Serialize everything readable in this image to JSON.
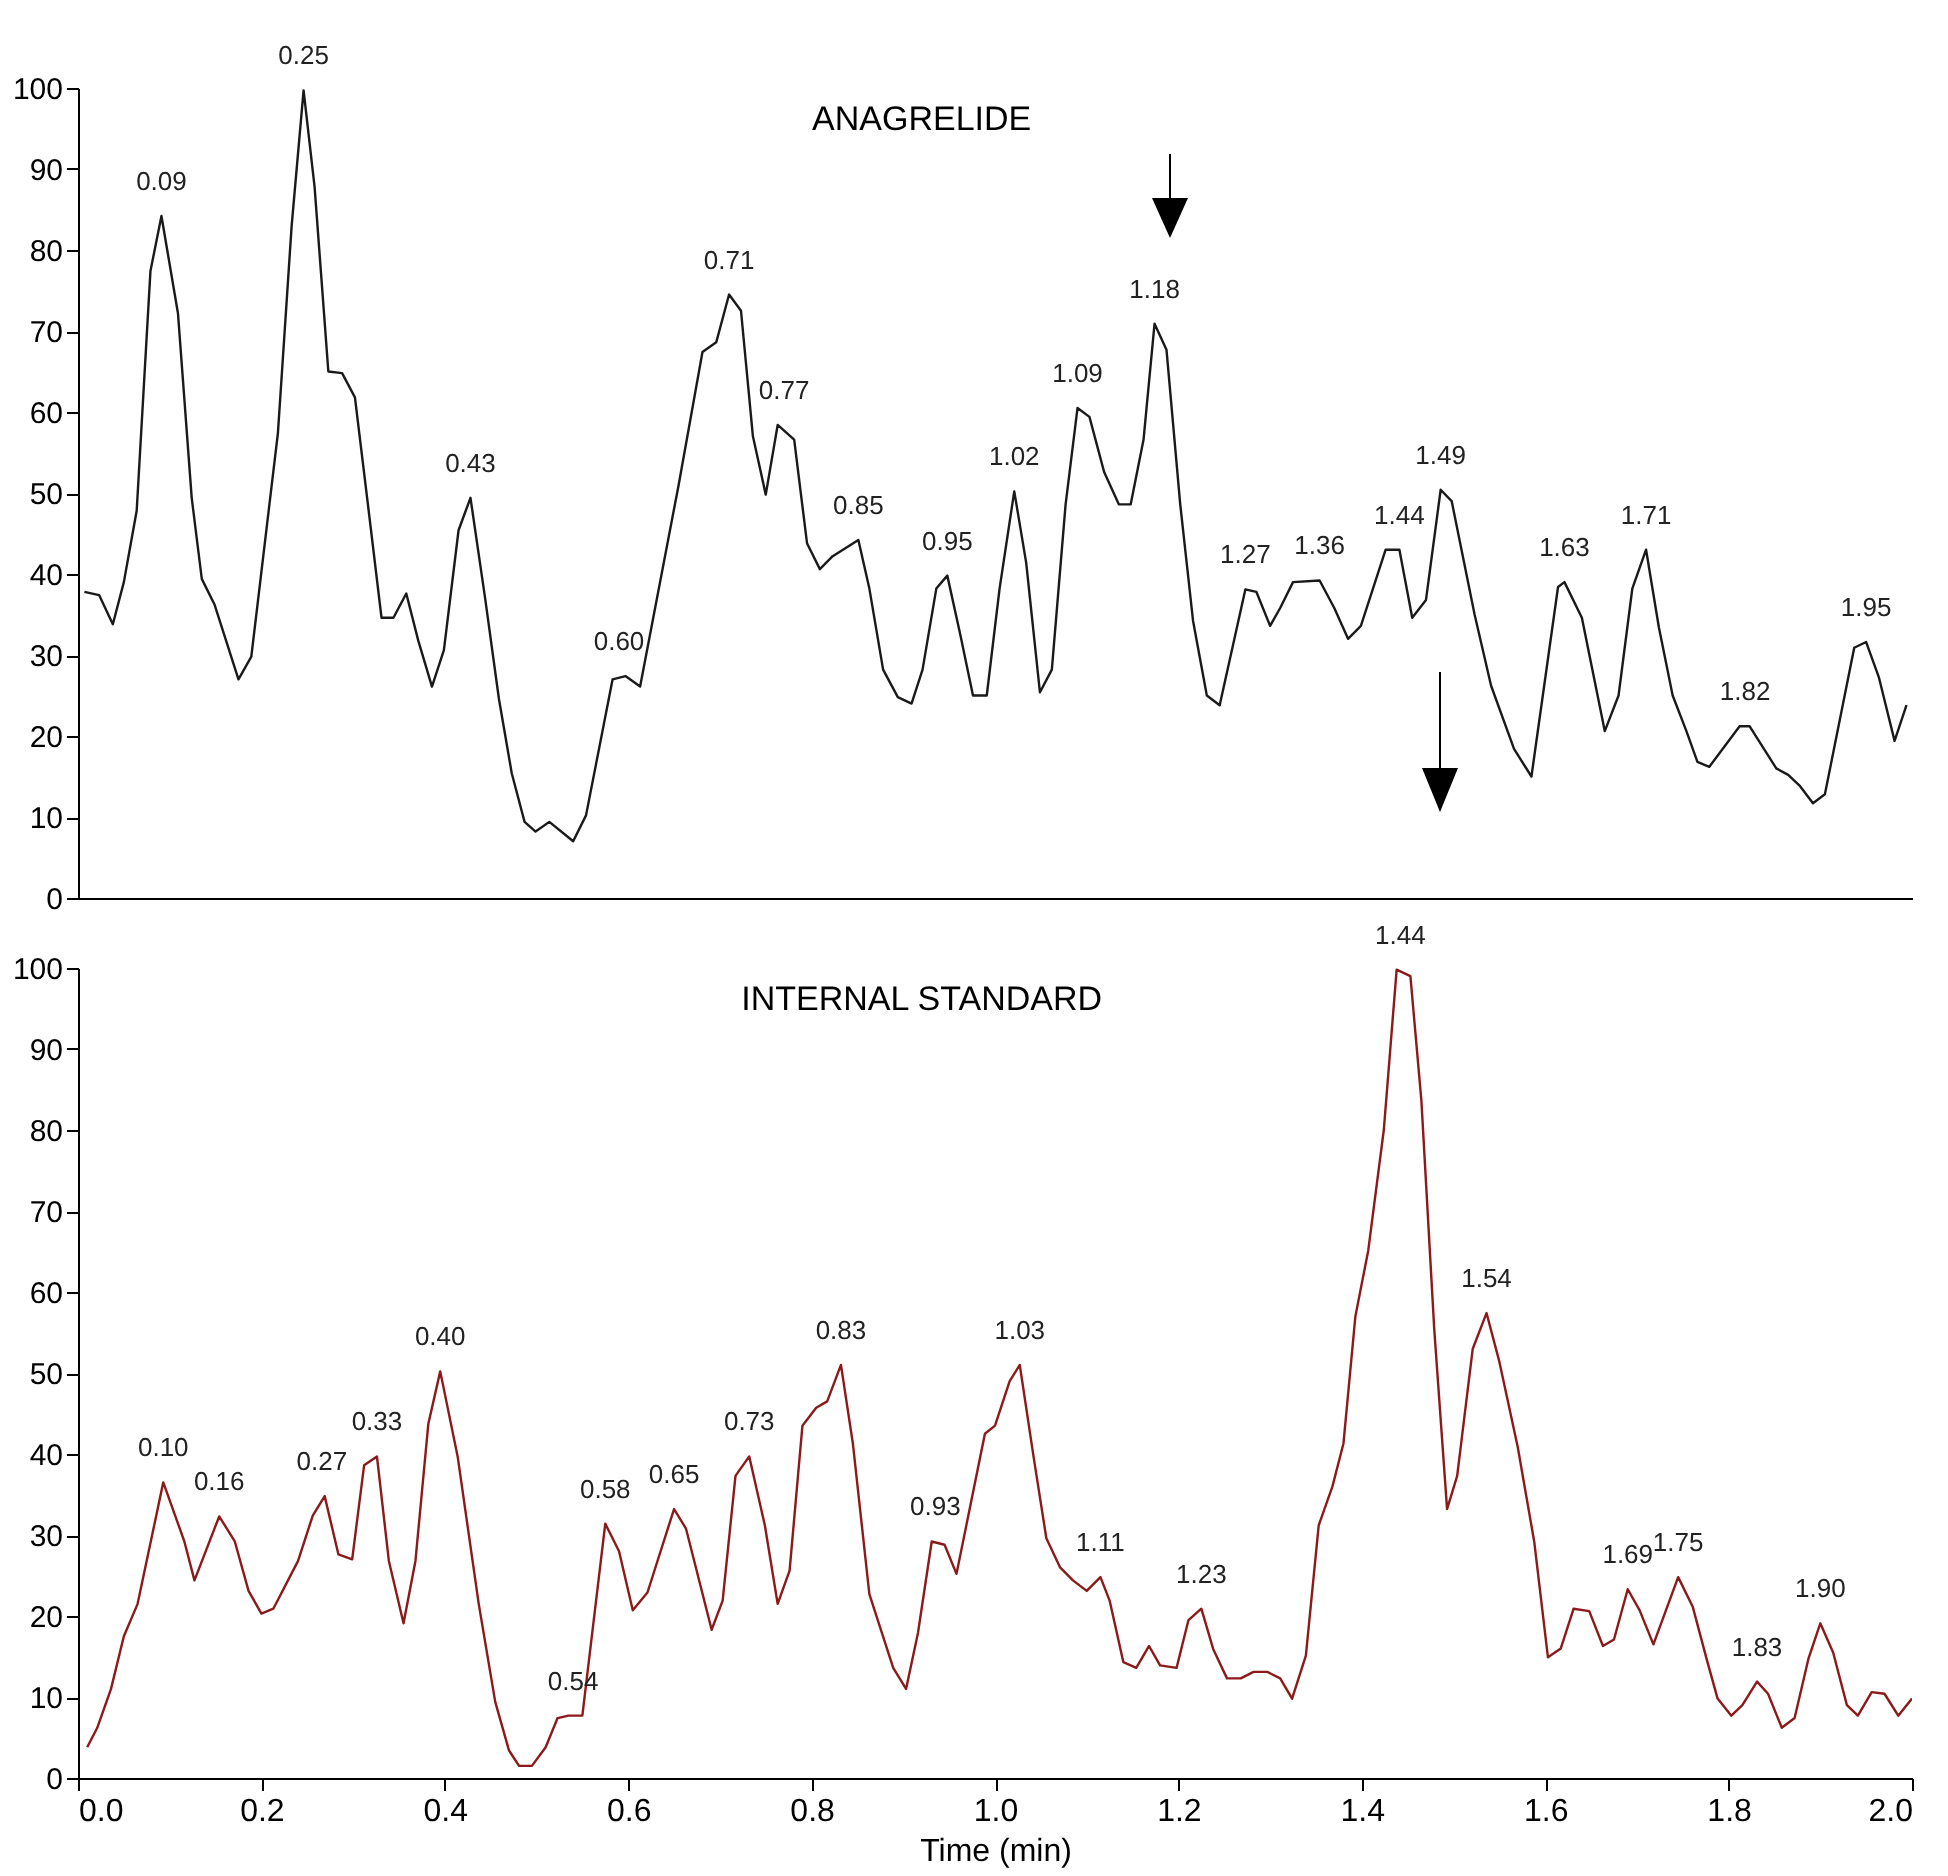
{
  "chart_data": [
    {
      "type": "line",
      "title": "ANAGRELIDE",
      "tick_labels": "y",
      "xlim": [
        0,
        2.0
      ],
      "ylim": [
        0,
        100
      ],
      "yticks": [
        0,
        10,
        20,
        30,
        40,
        50,
        60,
        70,
        80,
        90,
        100
      ],
      "grid": false,
      "series": [
        {
          "color": "#1a1a1a",
          "x": [
            0.007,
            0.023,
            0.038,
            0.05,
            0.064,
            0.079,
            0.091,
            0.109,
            0.124,
            0.135,
            0.149,
            0.175,
            0.189,
            0.218,
            0.233,
            0.246,
            0.258,
            0.273,
            0.288,
            0.302,
            0.317,
            0.331,
            0.344,
            0.358,
            0.371,
            0.386,
            0.399,
            0.415,
            0.428,
            0.444,
            0.459,
            0.473,
            0.487,
            0.499,
            0.514,
            0.54,
            0.554,
            0.583,
            0.597,
            0.613,
            0.655,
            0.681,
            0.696,
            0.71,
            0.723,
            0.736,
            0.75,
            0.763,
            0.781,
            0.795,
            0.809,
            0.823,
            0.851,
            0.863,
            0.878,
            0.894,
            0.909,
            0.921,
            0.936,
            0.948,
            0.962,
            0.976,
            0.991,
            1.005,
            1.021,
            1.034,
            1.049,
            1.062,
            1.077,
            1.09,
            1.103,
            1.119,
            1.135,
            1.148,
            1.162,
            1.174,
            1.187,
            1.202,
            1.216,
            1.231,
            1.245,
            1.273,
            1.285,
            1.3,
            1.311,
            1.325,
            1.354,
            1.37,
            1.385,
            1.399,
            1.426,
            1.441,
            1.455,
            1.47,
            1.486,
            1.498,
            1.523,
            1.541,
            1.566,
            1.585,
            1.614,
            1.621,
            1.64,
            1.665,
            1.68,
            1.695,
            1.71,
            1.724,
            1.739,
            1.754,
            1.766,
            1.779,
            1.812,
            1.823,
            1.852,
            1.865,
            1.878,
            1.892,
            1.905,
            1.937,
            1.95,
            1.964,
            1.981,
            1.994
          ],
          "values": [
            37.8,
            37.4,
            33.8,
            39.0,
            47.8,
            77.4,
            84.2,
            72.2,
            49.4,
            39.4,
            36.2,
            27.0,
            29.8,
            57.4,
            83.0,
            99.7,
            87.8,
            65.0,
            64.8,
            61.8,
            47.8,
            34.6,
            34.6,
            37.6,
            31.8,
            26.1,
            30.6,
            45.4,
            49.4,
            37.0,
            24.6,
            15.4,
            9.4,
            8.2,
            9.4,
            7.0,
            10.2,
            27.0,
            27.4,
            26.1,
            51.0,
            67.4,
            68.6,
            74.5,
            72.5,
            57.0,
            49.8,
            58.4,
            56.6,
            43.8,
            40.6,
            42.2,
            44.2,
            38.2,
            28.2,
            24.8,
            24.0,
            28.2,
            38.2,
            39.8,
            32.6,
            25.0,
            25.0,
            38.2,
            50.2,
            41.4,
            25.4,
            28.2,
            48.6,
            60.5,
            59.4,
            52.6,
            48.6,
            48.6,
            56.6,
            70.9,
            67.7,
            48.6,
            34.2,
            25.0,
            23.8,
            38.1,
            37.8,
            33.6,
            35.8,
            39.0,
            39.2,
            35.8,
            32.0,
            33.6,
            43.0,
            43.0,
            34.6,
            36.8,
            50.4,
            49.0,
            35.0,
            26.2,
            18.4,
            15.0,
            38.4,
            39.0,
            34.6,
            20.6,
            25.0,
            38.2,
            43.0,
            33.4,
            25.0,
            20.6,
            16.8,
            16.2,
            21.2,
            21.2,
            16.0,
            15.2,
            13.8,
            11.7,
            12.8,
            30.9,
            31.6,
            27.2,
            19.4,
            23.8
          ]
        }
      ],
      "annotations": [
        {
          "text": "0.09",
          "x": 0.091,
          "y": 84.2
        },
        {
          "text": "0.25",
          "x": 0.246,
          "y": 99.7
        },
        {
          "text": "0.43",
          "x": 0.428,
          "y": 49.4
        },
        {
          "text": "0.60",
          "x": 0.59,
          "y": 27.4
        },
        {
          "text": "0.71",
          "x": 0.71,
          "y": 74.5
        },
        {
          "text": "0.77",
          "x": 0.77,
          "y": 58.4
        },
        {
          "text": "0.85",
          "x": 0.851,
          "y": 44.2
        },
        {
          "text": "0.95",
          "x": 0.948,
          "y": 39.8
        },
        {
          "text": "1.02",
          "x": 1.021,
          "y": 50.2
        },
        {
          "text": "1.09",
          "x": 1.09,
          "y": 60.5
        },
        {
          "text": "1.18",
          "x": 1.174,
          "y": 70.9
        },
        {
          "text": "1.27",
          "x": 1.273,
          "y": 38.1
        },
        {
          "text": "1.36",
          "x": 1.354,
          "y": 39.2
        },
        {
          "text": "1.44",
          "x": 1.441,
          "y": 43.0
        },
        {
          "text": "1.49",
          "x": 1.486,
          "y": 50.4
        },
        {
          "text": "1.63",
          "x": 1.621,
          "y": 39.0
        },
        {
          "text": "1.71",
          "x": 1.71,
          "y": 43.0
        },
        {
          "text": "1.82",
          "x": 1.818,
          "y": 21.2
        },
        {
          "text": "1.95",
          "x": 1.95,
          "y": 31.6
        }
      ]
    },
    {
      "type": "line",
      "title": "INTERNAL STANDARD",
      "xlabel": "Time (min)",
      "xlim": [
        0,
        2.0
      ],
      "ylim": [
        0,
        100
      ],
      "yticks": [
        0,
        10,
        20,
        30,
        40,
        50,
        60,
        70,
        80,
        90,
        100
      ],
      "xticks": [
        {
          "value": 0,
          "label": "0.0"
        },
        0.2,
        0.4,
        0.6,
        0.8,
        {
          "value": 1,
          "label": "1.0"
        },
        1.2,
        1.4,
        1.6,
        1.8,
        {
          "value": 2,
          "label": "2.0"
        }
      ],
      "grid": false,
      "series": [
        {
          "color": "#8b1a1a",
          "x": [
            0.01,
            0.021,
            0.036,
            0.05,
            0.065,
            0.093,
            0.116,
            0.127,
            0.154,
            0.171,
            0.186,
            0.2,
            0.213,
            0.24,
            0.256,
            0.269,
            0.284,
            0.299,
            0.312,
            0.326,
            0.339,
            0.355,
            0.368,
            0.382,
            0.395,
            0.414,
            0.437,
            0.455,
            0.47,
            0.481,
            0.495,
            0.51,
            0.523,
            0.535,
            0.55,
            0.575,
            0.59,
            0.605,
            0.621,
            0.65,
            0.663,
            0.691,
            0.703,
            0.717,
            0.732,
            0.749,
            0.763,
            0.776,
            0.79,
            0.805,
            0.817,
            0.832,
            0.845,
            0.863,
            0.889,
            0.903,
            0.916,
            0.931,
            0.945,
            0.958,
            0.989,
            1.0,
            1.016,
            1.027,
            1.042,
            1.056,
            1.071,
            1.085,
            1.1,
            1.115,
            1.125,
            1.14,
            1.154,
            1.168,
            1.18,
            1.198,
            1.211,
            1.225,
            1.238,
            1.253,
            1.268,
            1.282,
            1.297,
            1.311,
            1.324,
            1.339,
            1.353,
            1.368,
            1.38,
            1.393,
            1.407,
            1.424,
            1.438,
            1.453,
            1.465,
            1.479,
            1.493,
            1.504,
            1.521,
            1.536,
            1.55,
            1.57,
            1.588,
            1.603,
            1.617,
            1.631,
            1.648,
            1.663,
            1.675,
            1.69,
            1.703,
            1.718,
            1.745,
            1.761,
            1.776,
            1.788,
            1.803,
            1.815,
            1.831,
            1.843,
            1.858,
            1.872,
            1.887,
            1.9,
            1.914,
            1.929,
            1.941,
            1.956,
            1.97,
            1.985,
            2.0
          ],
          "values": [
            3.8,
            6.2,
            11.0,
            17.5,
            21.5,
            36.5,
            29.2,
            24.4,
            32.3,
            29.2,
            23.1,
            20.3,
            20.9,
            26.8,
            32.4,
            34.8,
            27.6,
            27.0,
            38.6,
            39.7,
            26.8,
            19.1,
            26.8,
            43.7,
            50.2,
            39.7,
            21.5,
            9.4,
            3.4,
            1.5,
            1.5,
            3.8,
            7.4,
            7.7,
            7.7,
            31.4,
            28.0,
            20.7,
            22.9,
            33.2,
            30.8,
            18.3,
            21.9,
            37.3,
            39.7,
            31.2,
            21.5,
            25.6,
            43.5,
            45.7,
            46.5,
            51.0,
            41.3,
            22.7,
            13.6,
            11.0,
            17.9,
            29.2,
            28.8,
            25.2,
            42.5,
            43.5,
            49.0,
            51.0,
            39.7,
            29.6,
            26.0,
            24.4,
            23.1,
            24.8,
            21.9,
            14.3,
            13.6,
            16.3,
            13.9,
            13.6,
            19.5,
            20.9,
            15.9,
            12.3,
            12.3,
            13.1,
            13.1,
            12.3,
            9.8,
            15.1,
            31.2,
            36.0,
            41.3,
            57.0,
            65.1,
            80.0,
            99.8,
            99.0,
            83.6,
            55.4,
            33.2,
            37.3,
            53.0,
            57.4,
            51.4,
            40.9,
            29.2,
            14.9,
            16.0,
            20.9,
            20.6,
            16.3,
            17.1,
            23.3,
            20.7,
            16.5,
            24.8,
            21.1,
            14.7,
            9.8,
            7.7,
            9.0,
            11.9,
            10.4,
            6.2,
            7.4,
            14.7,
            19.1,
            15.5,
            9.0,
            7.7,
            10.6,
            10.4,
            7.7,
            9.8
          ]
        }
      ],
      "annotations": [
        {
          "text": "0.10",
          "x": 0.093,
          "y": 36.5
        },
        {
          "text": "0.16",
          "x": 0.154,
          "y": 32.3
        },
        {
          "text": "0.27",
          "x": 0.266,
          "y": 34.8
        },
        {
          "text": "0.33",
          "x": 0.326,
          "y": 39.7
        },
        {
          "text": "0.40",
          "x": 0.395,
          "y": 50.2
        },
        {
          "text": "0.54",
          "x": 0.54,
          "y": 7.7
        },
        {
          "text": "0.58",
          "x": 0.575,
          "y": 31.4
        },
        {
          "text": "0.65",
          "x": 0.65,
          "y": 33.2
        },
        {
          "text": "0.73",
          "x": 0.732,
          "y": 39.7
        },
        {
          "text": "0.83",
          "x": 0.832,
          "y": 51.0
        },
        {
          "text": "0.93",
          "x": 0.935,
          "y": 29.2
        },
        {
          "text": "1.03",
          "x": 1.027,
          "y": 51.0
        },
        {
          "text": "1.11",
          "x": 1.115,
          "y": 24.8
        },
        {
          "text": "1.23",
          "x": 1.225,
          "y": 20.9
        },
        {
          "text": "1.44",
          "x": 1.442,
          "y": 99.8
        },
        {
          "text": "1.54",
          "x": 1.536,
          "y": 57.4
        },
        {
          "text": "1.69",
          "x": 1.69,
          "y": 23.3
        },
        {
          "text": "1.75",
          "x": 1.745,
          "y": 24.8
        },
        {
          "text": "1.83",
          "x": 1.831,
          "y": 11.9
        },
        {
          "text": "1.90",
          "x": 1.9,
          "y": 19.1
        }
      ]
    }
  ]
}
